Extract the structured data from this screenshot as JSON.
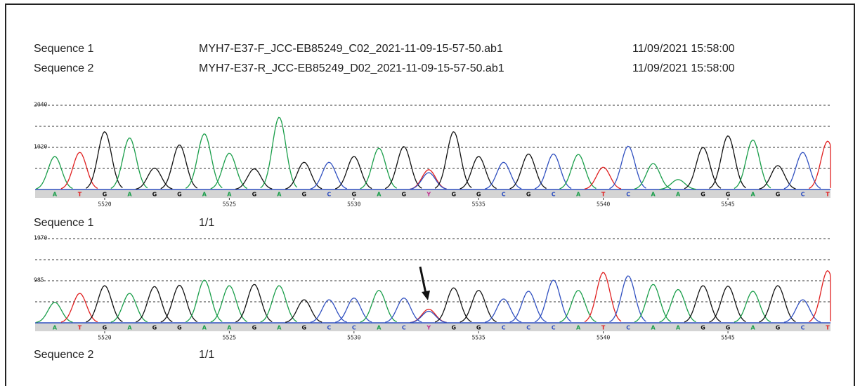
{
  "header": {
    "rows": [
      {
        "label": "Sequence 1",
        "file": "MYH7-E37-F_JCC-EB85249_C02_2021-11-09-15-57-50.ab1",
        "date": "11/09/2021 15:58:00"
      },
      {
        "label": "Sequence 2",
        "file": "MYH7-E37-R_JCC-EB85249_D02_2021-11-09-15-57-50.ab1",
        "date": "11/09/2021 15:58:00"
      }
    ]
  },
  "chart_data": [
    {
      "type": "chromatogram",
      "ylim": [
        0,
        2040
      ],
      "yticks": [
        1020,
        2040
      ],
      "bases": [
        "A",
        "T",
        "G",
        "A",
        "G",
        "G",
        "A",
        "A",
        "G",
        "A",
        "G",
        "C",
        "G",
        "A",
        "G",
        "Y",
        "G",
        "G",
        "C",
        "G",
        "C",
        "A",
        "T",
        "C",
        "A",
        "A",
        "G",
        "G",
        "A",
        "G",
        "C",
        "T"
      ],
      "values": [
        800,
        900,
        1400,
        1250,
        520,
        1080,
        1350,
        880,
        500,
        1750,
        660,
        660,
        800,
        1000,
        1040,
        480,
        1400,
        800,
        660,
        860,
        860,
        850,
        540,
        1050,
        630,
        240,
        1020,
        1300,
        1200,
        580,
        900,
        1170
      ],
      "position_ticks": [
        5520,
        5525,
        5530,
        5535,
        5540,
        5545
      ],
      "sequence_label": "Sequence 1",
      "page": "1/1",
      "base_colors": {
        "A": "#1a9e4a",
        "T": "#e02020",
        "G": "#111111",
        "C": "#3050c0",
        "Y": "#c03090"
      }
    },
    {
      "type": "chromatogram",
      "ylim": [
        0,
        1970
      ],
      "yticks": [
        985,
        1970
      ],
      "bases": [
        "A",
        "T",
        "G",
        "A",
        "G",
        "G",
        "A",
        "A",
        "G",
        "A",
        "G",
        "C",
        "C",
        "A",
        "C",
        "Y",
        "G",
        "G",
        "C",
        "C",
        "C",
        "A",
        "T",
        "C",
        "A",
        "A",
        "G",
        "G",
        "A",
        "G",
        "C",
        "T"
      ],
      "values": [
        480,
        690,
        870,
        690,
        850,
        880,
        1000,
        870,
        900,
        870,
        540,
        540,
        580,
        760,
        580,
        320,
        820,
        760,
        560,
        740,
        1000,
        760,
        1180,
        1100,
        900,
        780,
        870,
        860,
        740,
        870,
        540,
        1220
      ],
      "position_ticks": [
        5520,
        5525,
        5530,
        5535,
        5540,
        5545
      ],
      "sequence_label": "Sequence 2",
      "page": "1/1",
      "base_colors": {
        "A": "#1a9e4a",
        "T": "#e02020",
        "G": "#111111",
        "C": "#3050c0",
        "Y": "#c03090"
      }
    }
  ]
}
